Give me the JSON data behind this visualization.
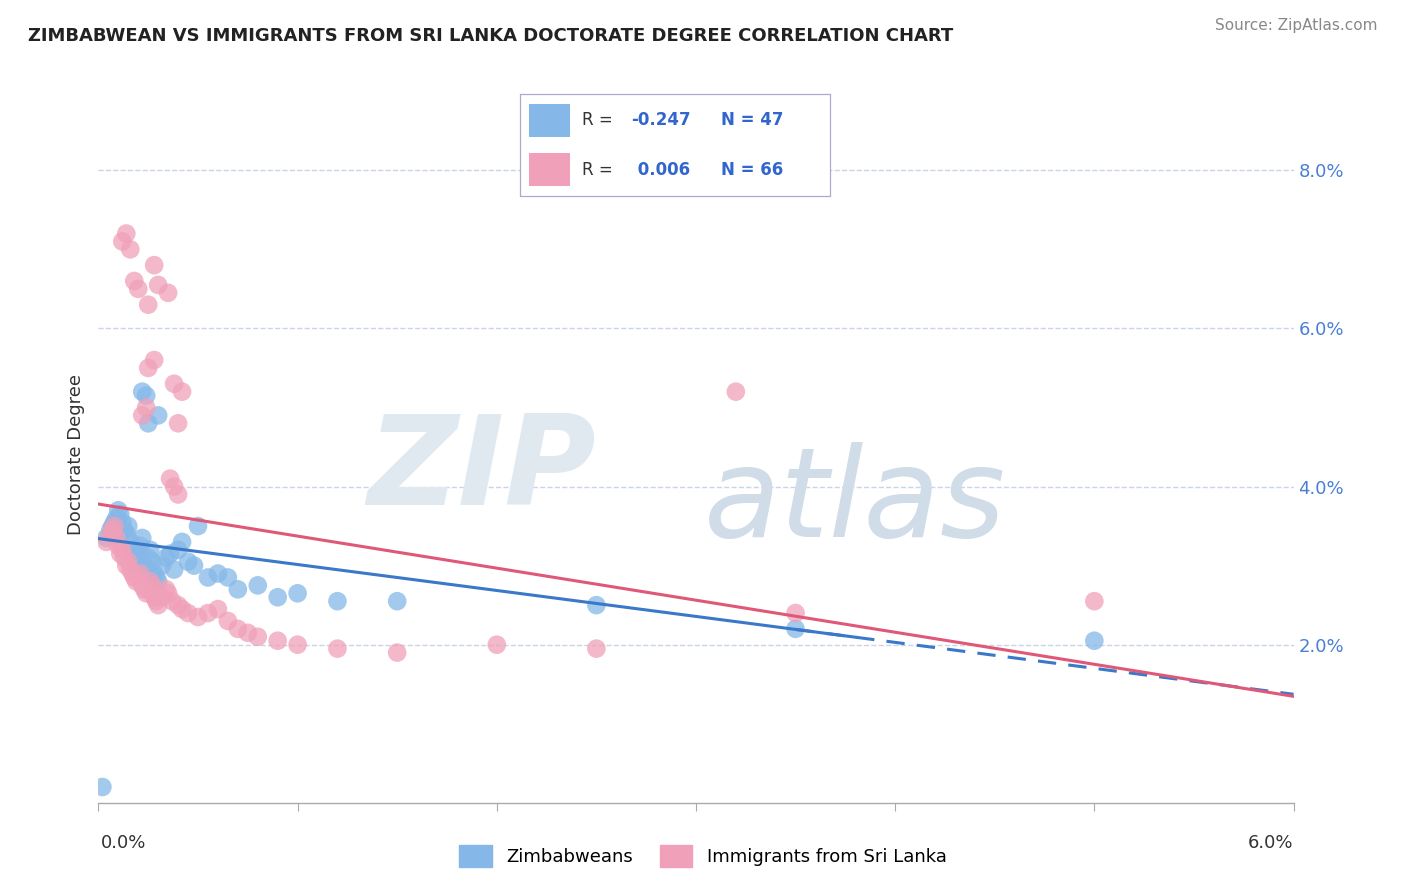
{
  "title": "ZIMBABWEAN VS IMMIGRANTS FROM SRI LANKA DOCTORATE DEGREE CORRELATION CHART",
  "source": "Source: ZipAtlas.com",
  "ylabel": "Doctorate Degree",
  "xlim": [
    0.0,
    6.0
  ],
  "ylim": [
    0.0,
    8.8
  ],
  "ytick_vals": [
    2.0,
    4.0,
    6.0,
    8.0
  ],
  "ytick_labels": [
    "2.0%",
    "4.0%",
    "6.0%",
    "8.0%"
  ],
  "background_color": "#ffffff",
  "grid_color": "#c8d4e8",
  "blue_color": "#85b8e8",
  "pink_color": "#f0a0b8",
  "blue_line_color": "#3a78c9",
  "pink_line_color": "#e05878",
  "ytick_color": "#4a7fd4",
  "blue_scatter": [
    [
      0.04,
      3.35
    ],
    [
      0.06,
      3.45
    ],
    [
      0.07,
      3.5
    ],
    [
      0.08,
      3.55
    ],
    [
      0.09,
      3.6
    ],
    [
      0.1,
      3.7
    ],
    [
      0.11,
      3.65
    ],
    [
      0.12,
      3.55
    ],
    [
      0.13,
      3.45
    ],
    [
      0.14,
      3.4
    ],
    [
      0.15,
      3.5
    ],
    [
      0.16,
      3.3
    ],
    [
      0.17,
      3.2
    ],
    [
      0.18,
      3.1
    ],
    [
      0.19,
      3.0
    ],
    [
      0.2,
      3.15
    ],
    [
      0.21,
      3.25
    ],
    [
      0.22,
      3.35
    ],
    [
      0.23,
      3.0
    ],
    [
      0.24,
      2.95
    ],
    [
      0.25,
      3.1
    ],
    [
      0.26,
      3.2
    ],
    [
      0.27,
      3.05
    ],
    [
      0.28,
      2.9
    ],
    [
      0.29,
      2.85
    ],
    [
      0.3,
      2.8
    ],
    [
      0.32,
      3.0
    ],
    [
      0.34,
      3.1
    ],
    [
      0.36,
      3.15
    ],
    [
      0.38,
      2.95
    ],
    [
      0.4,
      3.2
    ],
    [
      0.42,
      3.3
    ],
    [
      0.45,
      3.05
    ],
    [
      0.48,
      3.0
    ],
    [
      0.5,
      3.5
    ],
    [
      0.55,
      2.85
    ],
    [
      0.6,
      2.9
    ],
    [
      0.65,
      2.85
    ],
    [
      0.7,
      2.7
    ],
    [
      0.8,
      2.75
    ],
    [
      0.9,
      2.6
    ],
    [
      1.0,
      2.65
    ],
    [
      1.2,
      2.55
    ],
    [
      1.5,
      2.55
    ],
    [
      2.5,
      2.5
    ],
    [
      3.5,
      2.2
    ],
    [
      5.0,
      2.05
    ],
    [
      0.02,
      0.2
    ],
    [
      0.25,
      4.8
    ],
    [
      0.3,
      4.9
    ],
    [
      0.22,
      5.2
    ],
    [
      0.24,
      5.15
    ]
  ],
  "pink_scatter": [
    [
      0.04,
      3.3
    ],
    [
      0.06,
      3.4
    ],
    [
      0.07,
      3.45
    ],
    [
      0.08,
      3.5
    ],
    [
      0.09,
      3.35
    ],
    [
      0.1,
      3.25
    ],
    [
      0.11,
      3.15
    ],
    [
      0.12,
      3.2
    ],
    [
      0.13,
      3.1
    ],
    [
      0.14,
      3.0
    ],
    [
      0.15,
      3.05
    ],
    [
      0.16,
      2.95
    ],
    [
      0.17,
      2.9
    ],
    [
      0.18,
      2.85
    ],
    [
      0.19,
      2.8
    ],
    [
      0.2,
      2.85
    ],
    [
      0.21,
      2.9
    ],
    [
      0.22,
      2.75
    ],
    [
      0.23,
      2.7
    ],
    [
      0.24,
      2.65
    ],
    [
      0.25,
      2.7
    ],
    [
      0.26,
      2.8
    ],
    [
      0.27,
      2.75
    ],
    [
      0.28,
      2.6
    ],
    [
      0.29,
      2.55
    ],
    [
      0.3,
      2.5
    ],
    [
      0.32,
      2.6
    ],
    [
      0.34,
      2.7
    ],
    [
      0.35,
      2.65
    ],
    [
      0.37,
      2.55
    ],
    [
      0.4,
      2.5
    ],
    [
      0.42,
      2.45
    ],
    [
      0.45,
      2.4
    ],
    [
      0.5,
      2.35
    ],
    [
      0.55,
      2.4
    ],
    [
      0.6,
      2.45
    ],
    [
      0.65,
      2.3
    ],
    [
      0.7,
      2.2
    ],
    [
      0.75,
      2.15
    ],
    [
      0.8,
      2.1
    ],
    [
      0.9,
      2.05
    ],
    [
      1.0,
      2.0
    ],
    [
      1.2,
      1.95
    ],
    [
      1.5,
      1.9
    ],
    [
      2.0,
      2.0
    ],
    [
      2.5,
      1.95
    ],
    [
      3.5,
      2.4
    ],
    [
      5.0,
      2.55
    ],
    [
      0.12,
      7.1
    ],
    [
      0.14,
      7.2
    ],
    [
      0.16,
      7.0
    ],
    [
      0.18,
      6.6
    ],
    [
      0.2,
      6.5
    ],
    [
      0.25,
      6.3
    ],
    [
      0.28,
      6.8
    ],
    [
      0.3,
      6.55
    ],
    [
      0.35,
      6.45
    ],
    [
      0.25,
      5.5
    ],
    [
      0.28,
      5.6
    ],
    [
      0.38,
      5.3
    ],
    [
      0.42,
      5.2
    ],
    [
      0.22,
      4.9
    ],
    [
      0.24,
      5.0
    ],
    [
      0.4,
      4.8
    ],
    [
      0.36,
      4.1
    ],
    [
      0.38,
      4.0
    ],
    [
      0.4,
      3.9
    ],
    [
      3.2,
      5.2
    ]
  ]
}
